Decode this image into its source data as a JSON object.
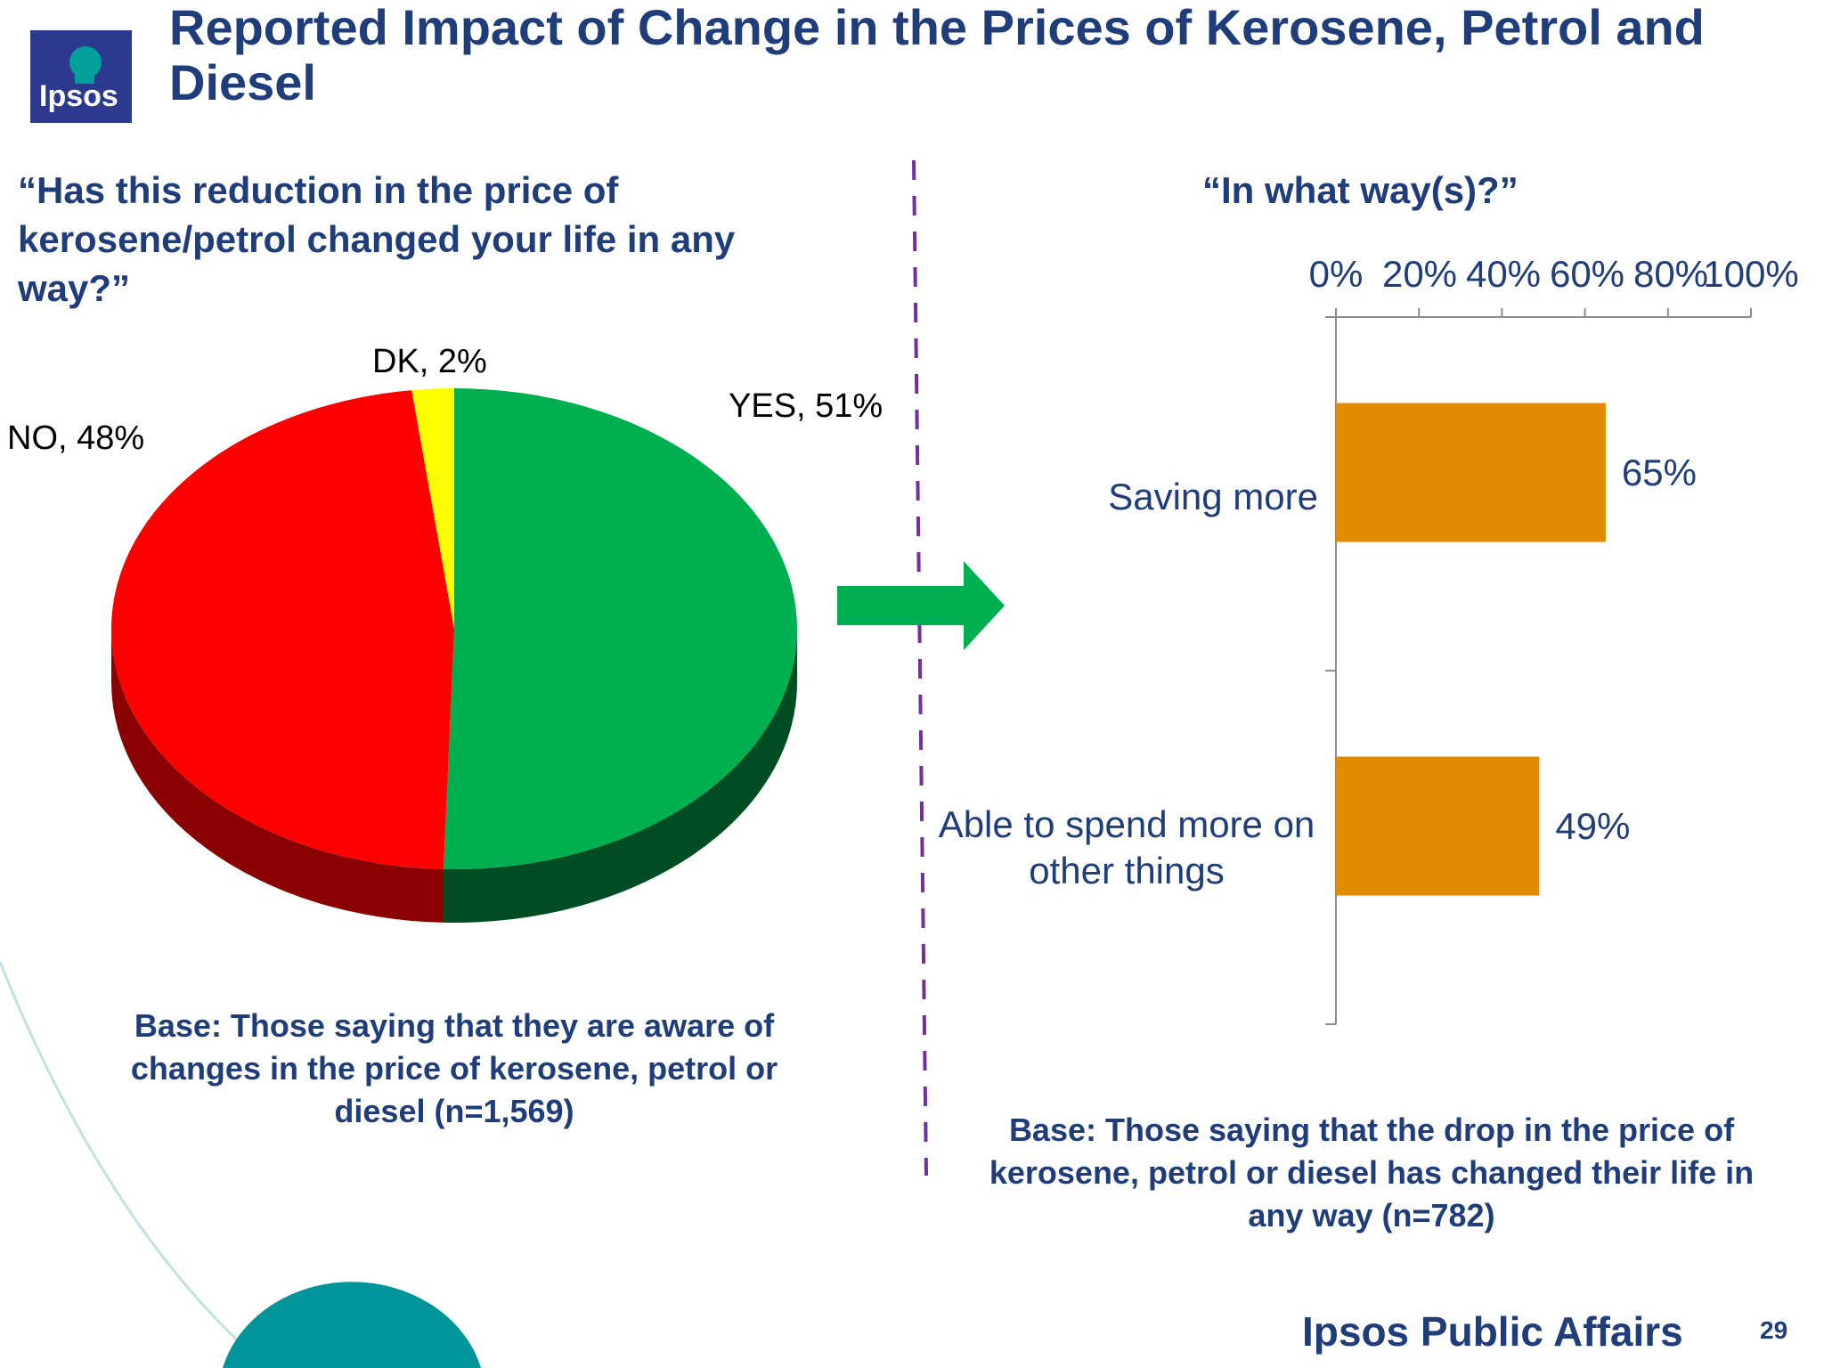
{
  "slide": {
    "title": "Reported Impact of Change in the Prices of Kerosene, Petrol and Diesel",
    "logo_text": "Ipsos",
    "footer_brand": "Ipsos Public Affairs",
    "page_number": "29"
  },
  "left": {
    "question": "“Has this reduction in the price of kerosene/petrol changed your life in any way?”",
    "base": "Base: Those saying that they are aware of changes in the price of kerosene, petrol or diesel (n=1,569)"
  },
  "right": {
    "question": "“In what way(s)?”",
    "base": "Base: Those saying that the drop in the price of kerosene, petrol or diesel has changed their life in any way (n=782)"
  },
  "colors": {
    "title": "#1f3d7a",
    "yes": "#00b050",
    "no": "#ff0000",
    "dk": "#ffff00",
    "bar": "#e38b00",
    "arrow": "#00b050",
    "divider": "#7030a0"
  },
  "chart_data": [
    {
      "type": "pie",
      "style": "3d",
      "slices": [
        {
          "label": "YES",
          "value": 51,
          "display": "YES, 51%"
        },
        {
          "label": "NO",
          "value": 48,
          "display": "NO, 48%"
        },
        {
          "label": "DK",
          "value": 2,
          "display": "DK, 2%"
        }
      ]
    },
    {
      "type": "bar",
      "orientation": "horizontal",
      "categories": [
        "Saving more",
        "Able to spend more on other things"
      ],
      "values": [
        65,
        49
      ],
      "value_labels": [
        "65%",
        "49%"
      ],
      "xlim": [
        0,
        100
      ],
      "x_ticks": [
        "0%",
        "20%",
        "40%",
        "60%",
        "80%",
        "100%"
      ],
      "axis_position": "top",
      "grid": false
    }
  ]
}
